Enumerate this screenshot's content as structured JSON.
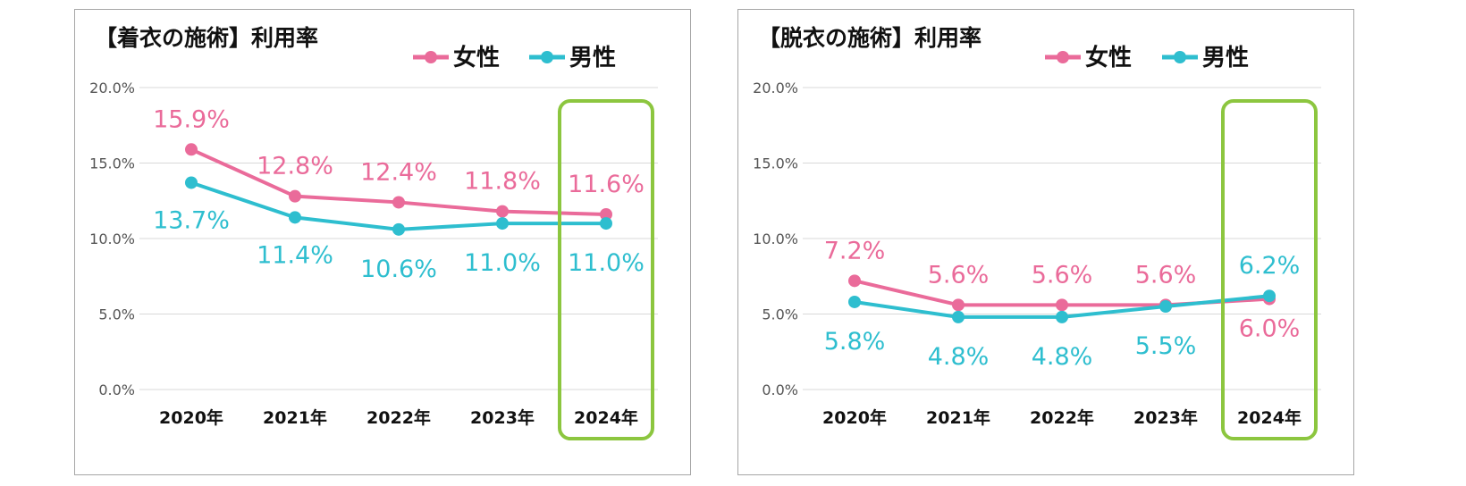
{
  "chart_data": [
    {
      "type": "line",
      "title": "【着衣の施術】利用率",
      "categories": [
        "2020年",
        "2021年",
        "2022年",
        "2023年",
        "2024年"
      ],
      "ylim": [
        0,
        20
      ],
      "yticks": [
        "0.0%",
        "5.0%",
        "10.0%",
        "15.0%",
        "20.0%"
      ],
      "grid": true,
      "legend_position": "top-right",
      "highlight_category": "2024年",
      "series": [
        {
          "name": "女性",
          "color": "#ea6b9a",
          "values": [
            15.9,
            12.8,
            12.4,
            11.8,
            11.6
          ],
          "labels": [
            "15.9%",
            "12.8%",
            "12.4%",
            "11.8%",
            "11.6%"
          ]
        },
        {
          "name": "男性",
          "color": "#2ebecf",
          "values": [
            13.7,
            11.4,
            10.6,
            11.0,
            11.0
          ],
          "labels": [
            "13.7%",
            "11.4%",
            "10.6%",
            "11.0%",
            "11.0%"
          ]
        }
      ]
    },
    {
      "type": "line",
      "title": "【脱衣の施術】利用率",
      "categories": [
        "2020年",
        "2021年",
        "2022年",
        "2023年",
        "2024年"
      ],
      "ylim": [
        0,
        20
      ],
      "yticks": [
        "0.0%",
        "5.0%",
        "10.0%",
        "15.0%",
        "20.0%"
      ],
      "grid": true,
      "legend_position": "top-right",
      "highlight_category": "2024年",
      "series": [
        {
          "name": "女性",
          "color": "#ea6b9a",
          "values": [
            7.2,
            5.6,
            5.6,
            5.6,
            6.0
          ],
          "labels": [
            "7.2%",
            "5.6%",
            "5.6%",
            "5.6%",
            "6.0%"
          ]
        },
        {
          "name": "男性",
          "color": "#2ebecf",
          "values": [
            5.8,
            4.8,
            4.8,
            5.5,
            6.2
          ],
          "labels": [
            "5.8%",
            "4.8%",
            "4.8%",
            "5.5%",
            "6.2%"
          ]
        }
      ]
    }
  ],
  "highlight_color": "#8cc63f",
  "grid_color": "#d9d9d9"
}
